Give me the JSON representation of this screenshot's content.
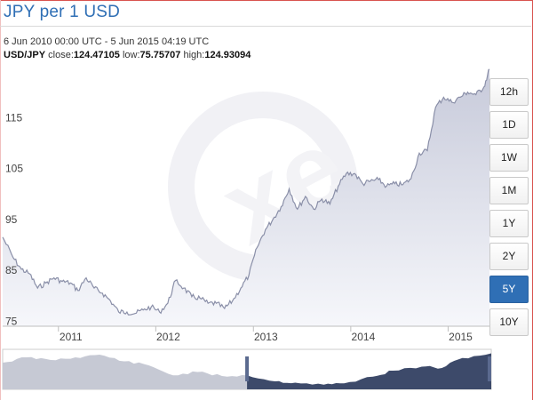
{
  "header": {
    "title": "JPY per 1 USD",
    "date_range": "6 Jun 2010 00:00 UTC - 5 Jun 2015 04:19 UTC",
    "pair_label": "USD/JPY",
    "close_label": "close:",
    "close_value": "124.47105",
    "low_label": "low:",
    "low_value": "75.75707",
    "high_label": "high:",
    "high_value": "124.93094"
  },
  "range_buttons": [
    {
      "label": "12h",
      "active": false
    },
    {
      "label": "1D",
      "active": false
    },
    {
      "label": "1W",
      "active": false
    },
    {
      "label": "1M",
      "active": false
    },
    {
      "label": "1Y",
      "active": false
    },
    {
      "label": "2Y",
      "active": false
    },
    {
      "label": "5Y",
      "active": true
    },
    {
      "label": "10Y",
      "active": false
    }
  ],
  "colors": {
    "line": "#8a8fa8",
    "fill_top": "#c9ccdc",
    "nav_fill": "#3d4a6a",
    "nav_fill_light": "#c6c9d4",
    "active_button": "#2f6fb5",
    "title": "#2f6fb5"
  },
  "chart_data": {
    "type": "area",
    "title": "JPY per 1 USD",
    "series": [
      {
        "name": "USD/JPY",
        "x": [
          "2010-06-06",
          "2010-07-15",
          "2010-08-15",
          "2010-09-15",
          "2010-10-15",
          "2010-11-15",
          "2010-12-15",
          "2011-01-15",
          "2011-02-15",
          "2011-03-15",
          "2011-04-15",
          "2011-05-15",
          "2011-06-15",
          "2011-07-15",
          "2011-08-15",
          "2011-09-15",
          "2011-10-15",
          "2011-11-15",
          "2011-12-15",
          "2012-01-15",
          "2012-02-15",
          "2012-03-15",
          "2012-04-15",
          "2012-05-15",
          "2012-06-15",
          "2012-07-15",
          "2012-08-15",
          "2012-09-15",
          "2012-10-15",
          "2012-11-15",
          "2012-12-15",
          "2013-01-15",
          "2013-02-15",
          "2013-03-15",
          "2013-04-15",
          "2013-05-15",
          "2013-06-15",
          "2013-07-15",
          "2013-08-15",
          "2013-09-15",
          "2013-10-15",
          "2013-11-15",
          "2013-12-15",
          "2014-01-15",
          "2014-02-15",
          "2014-03-15",
          "2014-04-15",
          "2014-05-15",
          "2014-06-15",
          "2014-07-15",
          "2014-08-15",
          "2014-09-15",
          "2014-10-15",
          "2014-11-15",
          "2014-12-15",
          "2015-01-15",
          "2015-02-15",
          "2015-03-15",
          "2015-04-15",
          "2015-05-15",
          "2015-06-05"
        ],
        "y": [
          91.5,
          87.5,
          85.2,
          84.3,
          81.5,
          82.5,
          83.5,
          82.8,
          82.5,
          81.0,
          83.5,
          81.5,
          80.5,
          79.0,
          76.8,
          76.8,
          76.5,
          77.2,
          77.8,
          76.8,
          78.5,
          83.0,
          81.5,
          79.8,
          79.5,
          78.5,
          78.5,
          77.5,
          79.0,
          81.5,
          84.0,
          89.5,
          93.0,
          95.0,
          97.5,
          101.0,
          97.0,
          99.5,
          97.0,
          99.0,
          98.0,
          101.5,
          104.0,
          104.0,
          102.0,
          102.5,
          102.8,
          101.5,
          102.0,
          101.8,
          103.0,
          108.0,
          108.5,
          117.0,
          119.0,
          118.0,
          119.0,
          120.0,
          119.5,
          121.0,
          124.5
        ]
      }
    ],
    "xticks": [
      {
        "label": "2011",
        "x": "2011-01-01"
      },
      {
        "label": "2012",
        "x": "2012-01-01"
      },
      {
        "label": "2013",
        "x": "2013-01-01"
      },
      {
        "label": "2014",
        "x": "2014-01-01"
      },
      {
        "label": "2015",
        "x": "2015-01-01"
      }
    ],
    "yticks": [
      75,
      85,
      95,
      105,
      115
    ],
    "xlim": [
      "2010-06-06",
      "2015-06-05"
    ],
    "ylim": [
      74,
      125
    ],
    "navigator": {
      "xlim": [
        "2005-06-06",
        "2015-06-05"
      ],
      "selected_range": [
        "2010-06-06",
        "2015-06-05"
      ],
      "ylim": [
        70,
        130
      ],
      "x": [
        "2005-06-06",
        "2005-12-01",
        "2006-06-01",
        "2006-12-01",
        "2007-06-01",
        "2007-12-01",
        "2008-06-01",
        "2008-12-01",
        "2009-06-01",
        "2009-12-01",
        "2010-06-06",
        "2011-01-01",
        "2011-06-01",
        "2012-01-01",
        "2012-06-01",
        "2013-01-01",
        "2013-06-01",
        "2014-01-01",
        "2014-06-01",
        "2014-11-01",
        "2015-06-05"
      ],
      "y": [
        110,
        118,
        114,
        118,
        122,
        112,
        106,
        91,
        96,
        90,
        91,
        82,
        80,
        77,
        79,
        89,
        98,
        104,
        102,
        117,
        124
      ]
    },
    "watermark": "xe",
    "grid": false,
    "legend": "none"
  }
}
